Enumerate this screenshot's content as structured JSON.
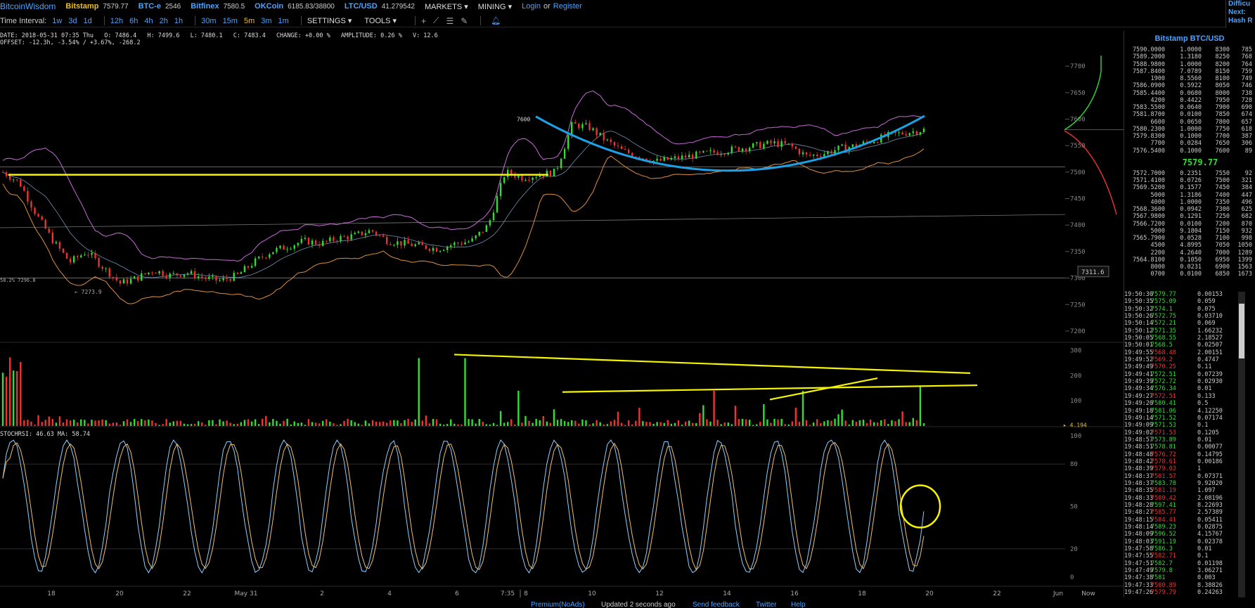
{
  "topbar": {
    "logo": "BitcoinWisdom",
    "exchanges": [
      {
        "name": "Bitstamp",
        "price": "7579.77"
      },
      {
        "name": "BTC-e",
        "price": "2546"
      },
      {
        "name": "Bitfinex",
        "price": "7580.5"
      },
      {
        "name": "OKCoin",
        "price": "6185.83/38800"
      },
      {
        "name": "LTC/USD",
        "price": "41.279542"
      }
    ],
    "menus": [
      "MARKETS",
      "MINING"
    ],
    "login": "Login",
    "or": "or",
    "register": "Register",
    "right_info": [
      "Difficu",
      "Next:",
      "Hash R"
    ]
  },
  "toolbar": {
    "label": "Time Interval:",
    "intervals": [
      "1w",
      "3d",
      "1d",
      "12h",
      "6h",
      "4h",
      "2h",
      "1h",
      "30m",
      "15m",
      "5m",
      "3m",
      "1m"
    ],
    "active_interval": "5m",
    "settings": "SETTINGS",
    "tools": "TOOLS",
    "tool_icons": [
      "plus-icon",
      "line-icon",
      "lines-icon",
      "brush-icon",
      "bell-icon"
    ]
  },
  "ohlc": {
    "line1": [
      "DATE: 2018-05-31 07:35 Thu",
      "O: 7486.4",
      "H: 7499.6",
      "L: 7480.1",
      "C: 7483.4",
      "CHANGE: +0.00 %",
      "AMPLITUDE: 0.26 %",
      "V: 12.6"
    ],
    "line2": "OFFSET: -12.3h, -3.54% / +3.67%, -268.2"
  },
  "colors": {
    "up": "#33dd33",
    "down": "#ee3333",
    "accent": "#4ba3ff",
    "yellow": "#f0c020",
    "trend": "#f5f500",
    "cup": "#1ea0e6"
  },
  "chart_data": [
    {
      "type": "candlestick",
      "title": "",
      "y_ticks": [
        7200,
        7250,
        7300,
        7350,
        7400,
        7450,
        7500,
        7550,
        7600,
        7650,
        7700
      ],
      "ylim": [
        7180,
        7740
      ],
      "x_ticks": [
        "18",
        "20",
        "22",
        "May 31",
        "2",
        "4",
        "6",
        "7:35",
        "8",
        "10",
        "12",
        "14",
        "16",
        "18",
        "20",
        "22",
        "Jun",
        "Now"
      ],
      "close_path": [
        7500,
        7480,
        7420,
        7370,
        7330,
        7350,
        7320,
        7290,
        7300,
        7315,
        7305,
        7310,
        7300,
        7295,
        7305,
        7330,
        7350,
        7360,
        7370,
        7365,
        7375,
        7380,
        7390,
        7370,
        7365,
        7360,
        7355,
        7365,
        7370,
        7400,
        7500,
        7490,
        7495,
        7500,
        7590,
        7585,
        7560,
        7540,
        7530,
        7520,
        7525,
        7530,
        7535,
        7540,
        7545,
        7550,
        7555,
        7550,
        7530,
        7535,
        7545,
        7550,
        7560,
        7570,
        7575,
        7580
      ],
      "annotations": [
        {
          "text": "7600",
          "kind": "high-label"
        },
        {
          "text": "7273.9",
          "kind": "low-label"
        },
        {
          "text": "58.2% 7296.8",
          "kind": "left-label"
        },
        {
          "text": "7311.6",
          "kind": "cursor-label"
        }
      ],
      "overlays": [
        "bollinger-bands",
        "moving-average",
        "yellow-support-line",
        "blue-cup-curve"
      ]
    },
    {
      "type": "bar",
      "title": "",
      "y_ticks": [
        100,
        200,
        300
      ],
      "ylim": [
        0,
        330
      ],
      "current_volume": "4.194",
      "overlays": [
        "yellow-upper-trend",
        "yellow-lower-trend",
        "yellow-short-trend"
      ]
    },
    {
      "type": "line",
      "title": "STOCHRSI: 46.63  MA: 58.74",
      "y_ticks": [
        0,
        20,
        50,
        80,
        100
      ],
      "ylim": [
        0,
        100
      ],
      "stochrsi": "46.63",
      "ma": "58.74",
      "overlays": [
        "yellow-circle"
      ]
    }
  ],
  "sidebar": {
    "title": "Bitstamp BTC/USD",
    "asks": [
      [
        "7590.0000",
        "1.0000",
        "8300",
        "785"
      ],
      [
        "7589.2000",
        "1.3180",
        "8250",
        "768"
      ],
      [
        "7588.9800",
        "1.0000",
        "8200",
        "764"
      ],
      [
        "7587.8400",
        "7.0789",
        "8150",
        "759"
      ],
      [
        "1900",
        "8.5560",
        "8100",
        "749"
      ],
      [
        "7586.0900",
        "0.5922",
        "8050",
        "746"
      ],
      [
        "7585.4400",
        "0.0680",
        "8000",
        "738"
      ],
      [
        "4200",
        "0.4422",
        "7950",
        "728"
      ],
      [
        "7583.5500",
        "0.0640",
        "7900",
        "690"
      ],
      [
        "7581.8700",
        "0.0100",
        "7850",
        "674"
      ],
      [
        "6600",
        "0.0650",
        "7800",
        "657"
      ],
      [
        "7580.2300",
        "1.0000",
        "7750",
        "618"
      ],
      [
        "7579.8300",
        "0.1000",
        "7700",
        "387"
      ],
      [
        "7700",
        "0.0284",
        "7650",
        "306"
      ],
      [
        "7576.5400",
        "0.1000",
        "7600",
        "89"
      ]
    ],
    "last_price": "7579.77",
    "bids": [
      [
        "7572.7000",
        "0.2351",
        "7550",
        "92"
      ],
      [
        "7571.4100",
        "0.0726",
        "7500",
        "321"
      ],
      [
        "7569.5200",
        "0.1577",
        "7450",
        "384"
      ],
      [
        "5000",
        "1.3186",
        "7400",
        "447"
      ],
      [
        "4000",
        "1.0000",
        "7350",
        "496"
      ],
      [
        "7568.3600",
        "0.0942",
        "7300",
        "625"
      ],
      [
        "7567.9800",
        "0.1291",
        "7250",
        "682"
      ],
      [
        "7566.7200",
        "0.0100",
        "7200",
        "870"
      ],
      [
        "5000",
        "9.1804",
        "7150",
        "932"
      ],
      [
        "7565.7900",
        "0.0528",
        "7100",
        "998"
      ],
      [
        "4500",
        "4.8995",
        "7050",
        "1050"
      ],
      [
        "2200",
        "4.2640",
        "7000",
        "1289"
      ],
      [
        "7564.8100",
        "0.1050",
        "6950",
        "1399"
      ],
      [
        "8000",
        "0.0231",
        "6900",
        "1563"
      ],
      [
        "0700",
        "0.0100",
        "6850",
        "1673"
      ]
    ],
    "trades": [
      [
        "19:50:30",
        "7579.77",
        "0.00153",
        "up"
      ],
      [
        "19:50:35",
        "7575.09",
        "0.059",
        "up"
      ],
      [
        "19:50:32",
        "7574.1",
        "0.075",
        "up"
      ],
      [
        "19:50:26",
        "7572.75",
        "0.03710",
        "up"
      ],
      [
        "19:50:14",
        "7572.21",
        "0.069",
        "up"
      ],
      [
        "19:50:12",
        "7571.35",
        "1.66232",
        "up"
      ],
      [
        "19:50:05",
        "7568.55",
        "2.18527",
        "up"
      ],
      [
        "19:50:01",
        "7568.5",
        "0.02507",
        "up"
      ],
      [
        "19:49:55",
        "7568.48",
        "2.00151",
        "down"
      ],
      [
        "19:49:52",
        "7569.2",
        "0.4747",
        "down"
      ],
      [
        "19:49:49",
        "7570.25",
        "0.11",
        "down"
      ],
      [
        "19:49:41",
        "7572.51",
        "0.07239",
        "up"
      ],
      [
        "19:49:39",
        "7572.72",
        "0.02930",
        "up"
      ],
      [
        "19:49:34",
        "7576.34",
        "0.01",
        "up"
      ],
      [
        "19:49:27",
        "7572.51",
        "0.133",
        "down"
      ],
      [
        "19:49:20",
        "7580.41",
        "0.5",
        "up"
      ],
      [
        "19:49:18",
        "7581.06",
        "4.12250",
        "up"
      ],
      [
        "19:49:14",
        "7571.52",
        "0.07174",
        "up"
      ],
      [
        "19:49:09",
        "7571.53",
        "0.1",
        "up"
      ],
      [
        "19:49:02",
        "7571.53",
        "0.1205",
        "down"
      ],
      [
        "19:48:57",
        "7573.89",
        "0.01",
        "up"
      ],
      [
        "19:48:51",
        "7578.81",
        "0.00077",
        "up"
      ],
      [
        "19:48:48",
        "7576.72",
        "0.14795",
        "down"
      ],
      [
        "19:48:42",
        "7578.61",
        "0.00186",
        "down"
      ],
      [
        "19:48:39",
        "7579.03",
        "1",
        "down"
      ],
      [
        "19:48:37",
        "7581.57",
        "0.07371",
        "down"
      ],
      [
        "19:48:37",
        "7583.78",
        "9.92020",
        "up"
      ],
      [
        "19:48:35",
        "7581.19",
        "1.097",
        "down"
      ],
      [
        "19:48:33",
        "7580.42",
        "2.08196",
        "down"
      ],
      [
        "19:48:28",
        "7597.41",
        "8.22693",
        "up"
      ],
      [
        "19:48:27",
        "7585.77",
        "2.57389",
        "down"
      ],
      [
        "19:48:15",
        "7584.41",
        "0.05411",
        "down"
      ],
      [
        "19:48:14",
        "7589.23",
        "0.02875",
        "up"
      ],
      [
        "19:48:09",
        "7596.52",
        "4.15767",
        "up"
      ],
      [
        "19:48:03",
        "7591.19",
        "0.02378",
        "up"
      ],
      [
        "19:47:58",
        "7586.3",
        "0.01",
        "up"
      ],
      [
        "19:47:55",
        "7582.71",
        "0.1",
        "down"
      ],
      [
        "19:47:51",
        "7582.7",
        "0.01198",
        "up"
      ],
      [
        "19:47:49",
        "7579.8",
        "3.06271",
        "up"
      ],
      [
        "19:47:38",
        "7581",
        "0.003",
        "up"
      ],
      [
        "19:47:33",
        "7580.89",
        "8.38826",
        "down"
      ],
      [
        "19:47:26",
        "7579.79",
        "0.24263",
        "down"
      ]
    ]
  },
  "footer": {
    "premium": "Premium(NoAds)",
    "updated": "Updated 2 seconds ago",
    "feedback": "Send feedback",
    "twitter": "Twitter",
    "help": "Help"
  }
}
